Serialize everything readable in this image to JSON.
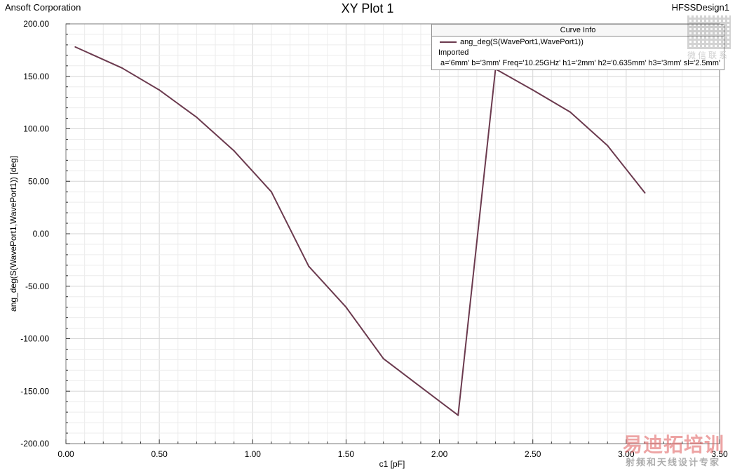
{
  "header": {
    "company": "Ansoft Corporation",
    "title": "XY Plot 1",
    "design": "HFSSDesign1"
  },
  "legend": {
    "header": "Curve Info",
    "series_name": "ang_deg(S(WavePort1,WavePort1))",
    "source": "Imported",
    "params": "a='6mm' b='3mm' Freq='10.25GHz' h1='2mm' h2='0.635mm' h3='3mm' sl='2.5mm'"
  },
  "watermark": {
    "qr_caption": "微信联系",
    "logo_text": "易迪拓培训",
    "logo_sub": "射频和天线设计专家"
  },
  "chart_data": {
    "type": "line",
    "title": "XY Plot 1",
    "xlabel": "c1 [pF]",
    "ylabel": "ang_deg(S(WavePort1,WavePort1)) [deg]",
    "xlim": [
      0.0,
      3.5
    ],
    "ylim": [
      -200.0,
      200.0
    ],
    "grid": true,
    "legend_position": "top-right",
    "x_ticks": [
      "0.00",
      "0.50",
      "1.00",
      "1.50",
      "2.00",
      "2.50",
      "3.00",
      "3.50"
    ],
    "y_ticks": [
      "200.00",
      "150.00",
      "100.00",
      "50.00",
      "0.00",
      "-50.00",
      "-100.00",
      "-150.00",
      "-200.00"
    ],
    "series": [
      {
        "name": "ang_deg(S(WavePort1,WavePort1))",
        "color": "#6b3a4e",
        "x": [
          0.05,
          0.3,
          0.5,
          0.7,
          0.9,
          1.1,
          1.3,
          1.5,
          1.7,
          1.9,
          2.1,
          2.3,
          2.5,
          2.7,
          2.9,
          3.1
        ],
        "y": [
          178,
          158,
          137,
          111,
          79,
          40,
          -31,
          -70,
          -119,
          -146,
          -173,
          157,
          137,
          116,
          84,
          39
        ]
      }
    ]
  }
}
